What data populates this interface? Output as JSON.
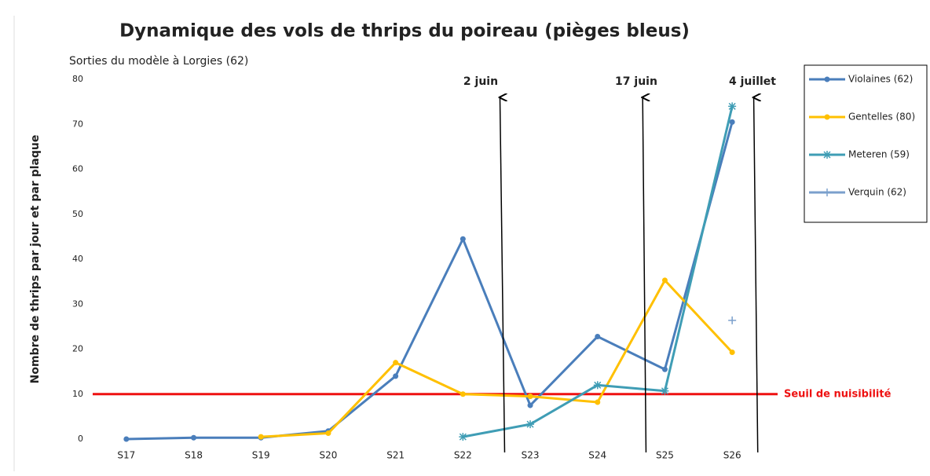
{
  "chart_data": {
    "type": "line",
    "title": "Dynamique des vols de thrips du poireau (pièges bleus)",
    "subtitle": "Sorties du modèle à Lorgies (62)",
    "y_label": "Nombre de thrips par jour et par plaque",
    "categories": [
      "S17",
      "S18",
      "S19",
      "S20",
      "S21",
      "S22",
      "S23",
      "S24",
      "S25",
      "S26"
    ],
    "series": [
      {
        "name": "Violaines (62)",
        "color": "#4a7ebb",
        "marker": "circle",
        "values": [
          0,
          0.3,
          0.3,
          1.8,
          14,
          44.5,
          7.5,
          22.8,
          15.5,
          70.5
        ]
      },
      {
        "name": "Gentelles (80)",
        "color": "#ffc000",
        "marker": "circle",
        "values": [
          null,
          null,
          0.5,
          1.3,
          17,
          10,
          9.5,
          8.2,
          35.3,
          19.3
        ]
      },
      {
        "name": "Meteren (59)",
        "color": "#3f9db5",
        "marker": "star",
        "values": [
          null,
          null,
          null,
          null,
          null,
          0.5,
          3.3,
          12,
          10.7,
          74
        ]
      },
      {
        "name": "Verquin (62)",
        "color": "#7ba0cc",
        "marker": "plus",
        "values": [
          null,
          null,
          null,
          null,
          null,
          null,
          null,
          null,
          null,
          26.4
        ]
      }
    ],
    "threshold": {
      "value": 10,
      "label": "Seuil de nuisibilité",
      "color": "#ee1111"
    },
    "annotations": [
      "2 juin",
      "17 juin",
      "4 juillet"
    ],
    "ylim": [
      0,
      80
    ],
    "yticks": [
      0,
      10,
      20,
      30,
      40,
      50,
      60,
      70,
      80
    ],
    "grid": false,
    "legend": "right"
  }
}
